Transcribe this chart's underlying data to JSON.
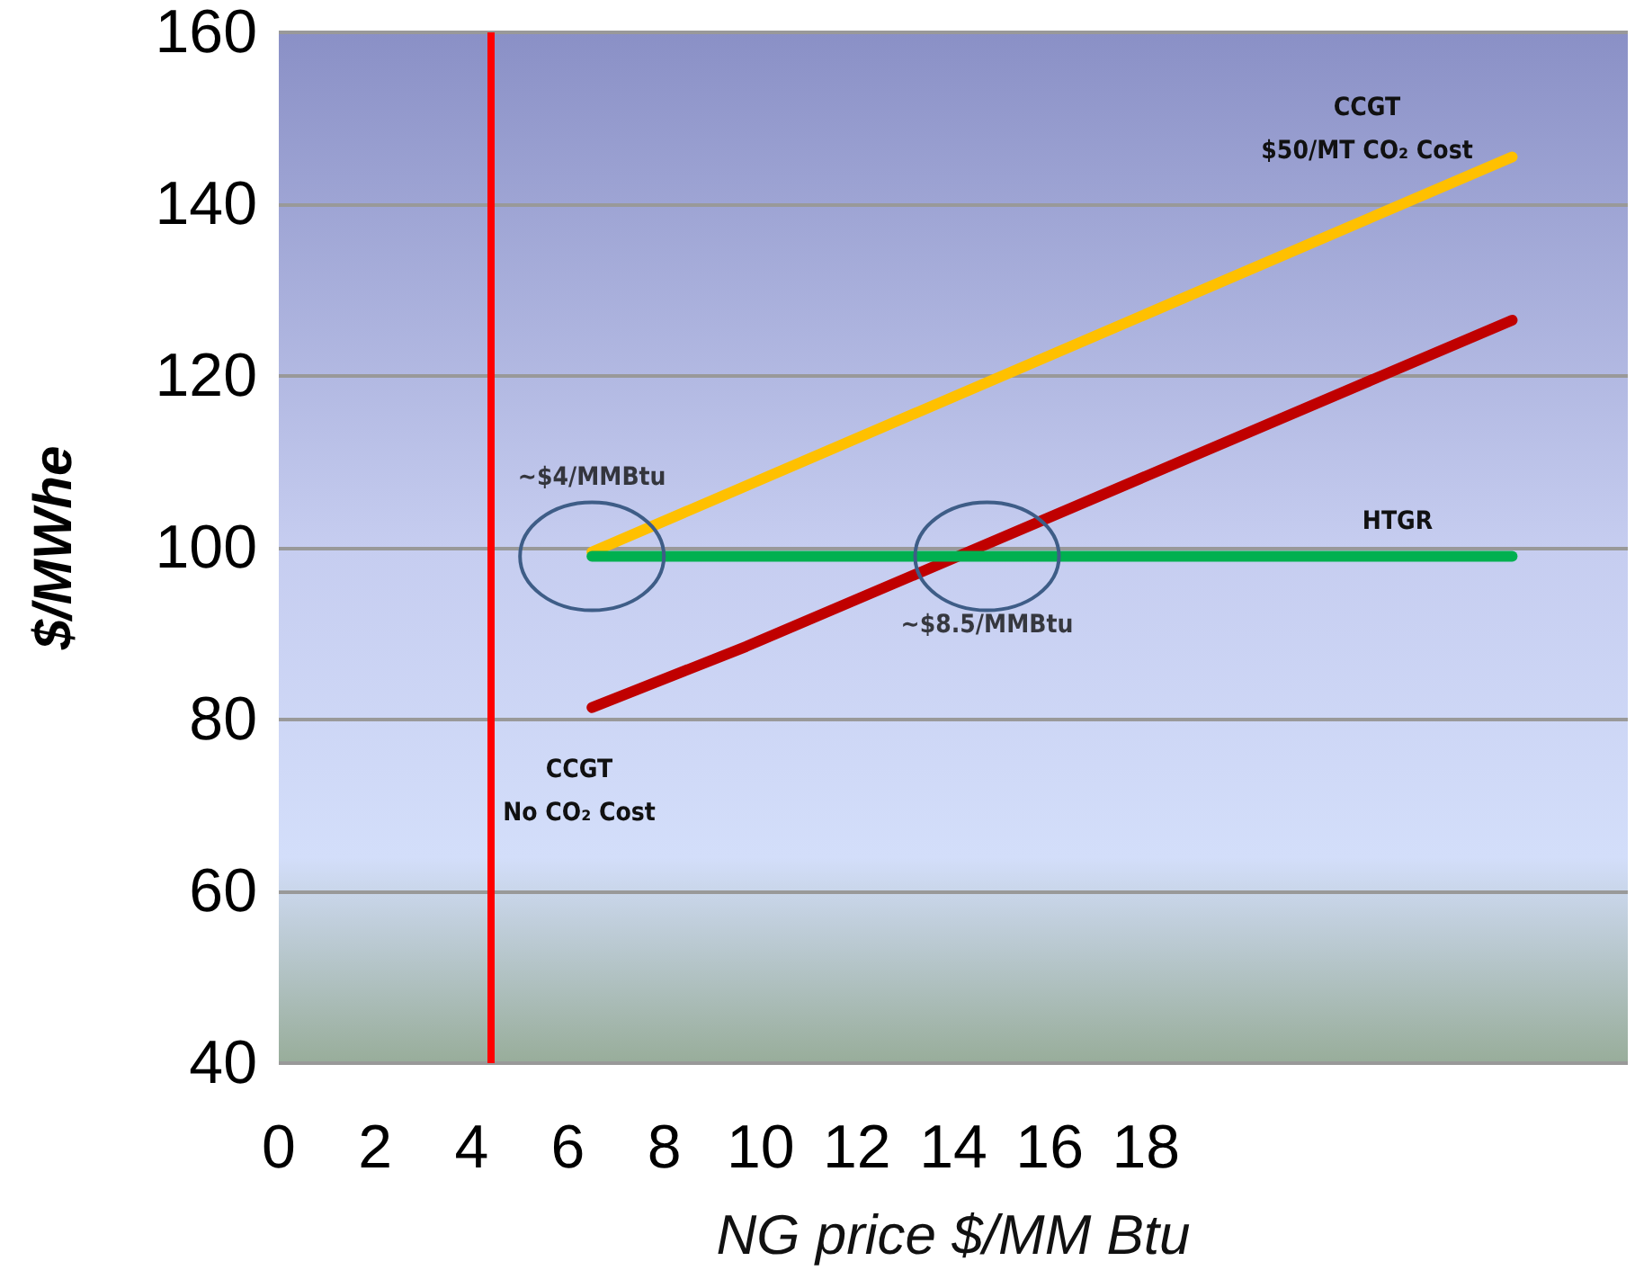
{
  "chart_data": {
    "type": "line",
    "xlabel": "NG price $/MM Btu",
    "ylabel": "$/MWhe",
    "xlim": [
      0,
      28
    ],
    "xticks": [
      0,
      2,
      4,
      6,
      8,
      10,
      12,
      14,
      16,
      18
    ],
    "ylim": [
      40,
      160
    ],
    "yticks": [
      40,
      60,
      80,
      100,
      120,
      140,
      160
    ],
    "grid": "y",
    "marker": "none",
    "line_style": "solid",
    "series": [
      {
        "color": "#ffc000",
        "x": [
          6.5,
          25.6
        ],
        "values": [
          99.5,
          145.5
        ]
      },
      {
        "color": "#c00000",
        "x": [
          6.5,
          9.7,
          25.6
        ],
        "values": [
          81.4,
          88.5,
          126.5
        ]
      },
      {
        "color": "#00b050",
        "x": [
          6.5,
          25.6
        ],
        "values": [
          99,
          99
        ]
      }
    ],
    "ref_lines": [
      {
        "axis": "x",
        "value": 4.4,
        "color": "#ff0000",
        "line_style": "solid"
      }
    ],
    "annotations": [
      {
        "text": "~$4/MMBtu",
        "x": 6.5,
        "y": 99
      },
      {
        "text": "~$8.5/MMBtu",
        "x": 14.7,
        "y": 99
      },
      "CCGT\n$50/MT CO₂ Cost",
      "CCGT\nNo CO₂ Cost",
      "HTGR"
    ]
  }
}
